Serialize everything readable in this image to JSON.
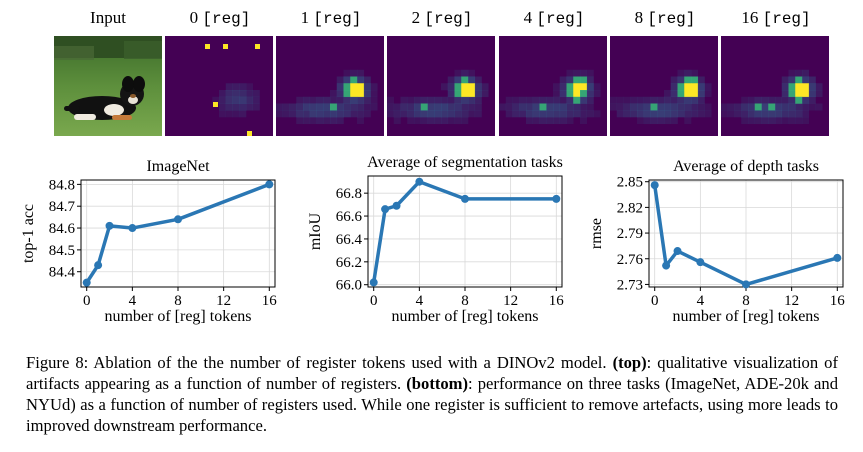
{
  "header": {
    "input_label": "Input",
    "reg_columns": [
      {
        "num": "0",
        "tag": "[reg]"
      },
      {
        "num": "1",
        "tag": "[reg]"
      },
      {
        "num": "2",
        "tag": "[reg]"
      },
      {
        "num": "4",
        "tag": "[reg]"
      },
      {
        "num": "8",
        "tag": "[reg]"
      },
      {
        "num": "16",
        "tag": "[reg]"
      }
    ]
  },
  "colors": {
    "line": "#2a77b4",
    "heat_bg": "#440154",
    "heat_mid": "#31688e",
    "heat_hi": "#35b779",
    "heat_peak": "#fde725"
  },
  "chart_data": [
    {
      "type": "line",
      "title": "ImageNet",
      "xlabel": "number of [reg] tokens",
      "ylabel": "top-1 acc",
      "x": [
        0,
        1,
        2,
        4,
        8,
        16
      ],
      "y": [
        84.35,
        84.43,
        84.61,
        84.6,
        84.64,
        84.8
      ],
      "xticks": [
        "0",
        "4",
        "8",
        "12",
        "16"
      ],
      "yticks": [
        "84.4",
        "84.5",
        "84.6",
        "84.7",
        "84.8"
      ],
      "xlim": [
        -0.5,
        16.5
      ],
      "ylim": [
        84.33,
        84.82
      ],
      "grid": true
    },
    {
      "type": "line",
      "title": "Average of segmentation tasks",
      "xlabel": "number of [reg] tokens",
      "ylabel": "mIoU",
      "x": [
        0,
        1,
        2,
        4,
        8,
        16
      ],
      "y": [
        66.02,
        66.66,
        66.69,
        66.9,
        66.75,
        66.75
      ],
      "xticks": [
        "0",
        "4",
        "8",
        "12",
        "16"
      ],
      "yticks": [
        "66.0",
        "66.2",
        "66.4",
        "66.6",
        "66.8"
      ],
      "xlim": [
        -0.5,
        16.5
      ],
      "ylim": [
        65.98,
        66.95
      ],
      "grid": true
    },
    {
      "type": "line",
      "title": "Average of depth tasks",
      "xlabel": "number of [reg] tokens",
      "ylabel": "rmse",
      "x": [
        0,
        1,
        2,
        4,
        8,
        16
      ],
      "y": [
        2.846,
        2.752,
        2.769,
        2.756,
        2.73,
        2.761
      ],
      "xticks": [
        "0",
        "4",
        "8",
        "12",
        "16"
      ],
      "yticks": [
        "2.73",
        "2.76",
        "2.79",
        "2.82",
        "2.85"
      ],
      "xlim": [
        -0.5,
        16.5
      ],
      "ylim": [
        2.727,
        2.852
      ],
      "grid": true
    }
  ],
  "caption": {
    "lead": "Figure 8: Ablation of the the number of register tokens used with a DINOv2 model. ",
    "top_label": "(top)",
    "mid": ": qualitative visualization of artifacts appearing as a function of number of registers. ",
    "bottom_label": "(bottom)",
    "tail": ": performance on three tasks (ImageNet, ADE-20k and NYUd) as a function of number of registers used. While one register is sufficient to remove artefacts, using more leads to improved downstream performance."
  }
}
